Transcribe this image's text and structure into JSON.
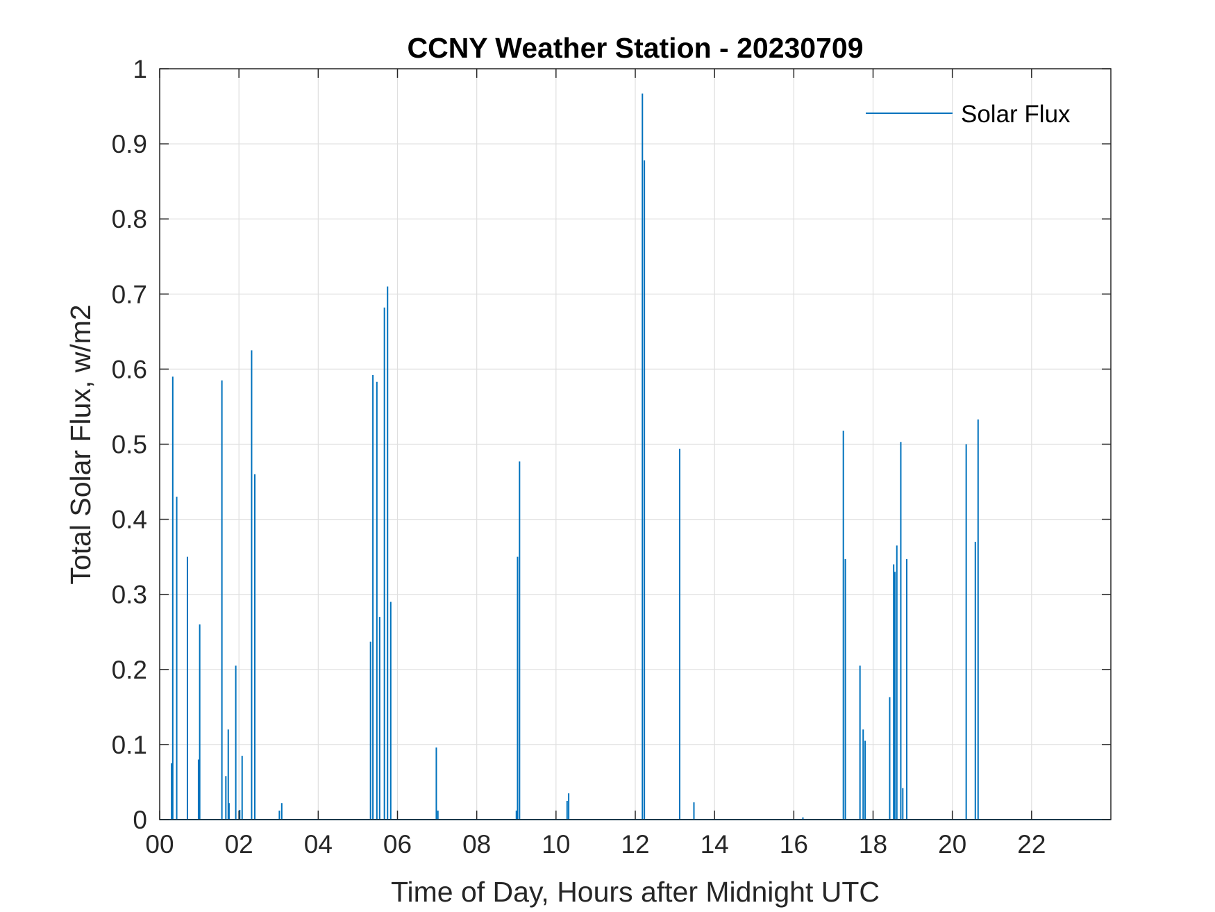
{
  "colors": {
    "series": "#0072BD",
    "grid": "#DFDFDF",
    "axis": "#262626"
  },
  "chart_data": {
    "type": "line",
    "title": "CCNY Weather Station - 20230709",
    "xlabel": "Time of Day, Hours after Midnight UTC",
    "ylabel": "Total Solar Flux, w/m2",
    "xlim": [
      0,
      24
    ],
    "ylim": [
      0,
      1
    ],
    "xticks": [
      0,
      2,
      4,
      6,
      8,
      10,
      12,
      14,
      16,
      18,
      20,
      22
    ],
    "xtick_labels": [
      "00",
      "02",
      "04",
      "06",
      "08",
      "10",
      "12",
      "14",
      "16",
      "18",
      "20",
      "22"
    ],
    "yticks": [
      0,
      0.1,
      0.2,
      0.3,
      0.4,
      0.5,
      0.6,
      0.7,
      0.8,
      0.9,
      1
    ],
    "ytick_labels": [
      "0",
      "0.1",
      "0.2",
      "0.3",
      "0.4",
      "0.5",
      "0.6",
      "0.7",
      "0.8",
      "0.9",
      "1"
    ],
    "grid": true,
    "legend": {
      "position": "top-right",
      "entries": [
        "Solar Flux"
      ]
    },
    "series": [
      {
        "name": "Solar Flux",
        "spikes": [
          [
            0.3,
            0.075
          ],
          [
            0.33,
            0.59
          ],
          [
            0.43,
            0.43
          ],
          [
            0.7,
            0.35
          ],
          [
            0.98,
            0.08
          ],
          [
            1.01,
            0.26
          ],
          [
            1.57,
            0.585
          ],
          [
            1.67,
            0.058
          ],
          [
            1.73,
            0.12
          ],
          [
            1.75,
            0.022
          ],
          [
            1.92,
            0.205
          ],
          [
            2.02,
            0.013
          ],
          [
            2.08,
            0.085
          ],
          [
            2.32,
            0.625
          ],
          [
            2.4,
            0.46
          ],
          [
            3.02,
            0.012
          ],
          [
            3.08,
            0.022
          ],
          [
            5.32,
            0.237
          ],
          [
            5.38,
            0.592
          ],
          [
            5.48,
            0.583
          ],
          [
            5.55,
            0.27
          ],
          [
            5.67,
            0.682
          ],
          [
            5.75,
            0.71
          ],
          [
            5.83,
            0.29
          ],
          [
            6.98,
            0.096
          ],
          [
            7.02,
            0.012
          ],
          [
            9.0,
            0.012
          ],
          [
            9.03,
            0.35
          ],
          [
            9.08,
            0.477
          ],
          [
            10.28,
            0.025
          ],
          [
            10.32,
            0.035
          ],
          [
            12.18,
            0.967
          ],
          [
            12.23,
            0.878
          ],
          [
            13.12,
            0.494
          ],
          [
            13.48,
            0.023
          ],
          [
            16.23,
            0.003
          ],
          [
            17.25,
            0.518
          ],
          [
            17.3,
            0.347
          ],
          [
            17.67,
            0.205
          ],
          [
            17.75,
            0.12
          ],
          [
            17.8,
            0.105
          ],
          [
            18.42,
            0.163
          ],
          [
            18.52,
            0.34
          ],
          [
            18.55,
            0.33
          ],
          [
            18.6,
            0.365
          ],
          [
            18.7,
            0.503
          ],
          [
            18.75,
            0.042
          ],
          [
            18.85,
            0.347
          ],
          [
            20.35,
            0.5
          ],
          [
            20.58,
            0.37
          ],
          [
            20.65,
            0.533
          ]
        ]
      }
    ]
  }
}
